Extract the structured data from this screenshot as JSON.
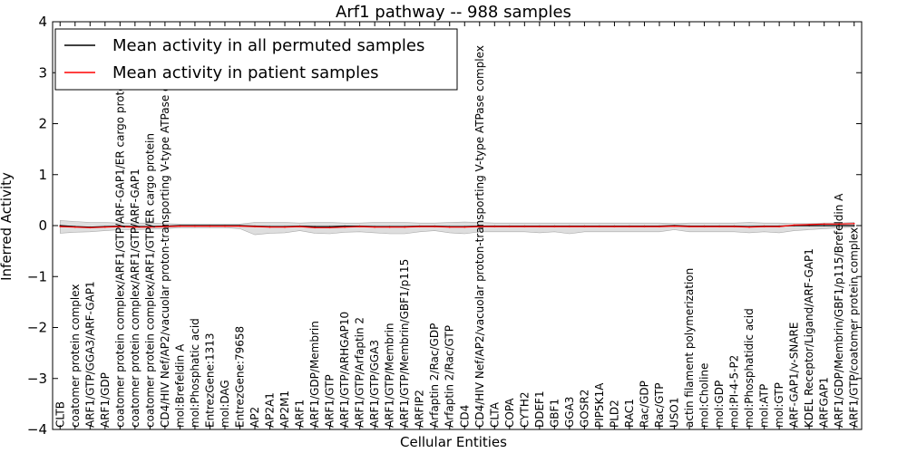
{
  "chart_data": {
    "type": "line",
    "title": "Arf1 pathway -- 988 samples",
    "xlabel": "Cellular Entities",
    "ylabel": "Inferred Activity",
    "ylim": [
      -4,
      4
    ],
    "yticks": [
      -4,
      -3,
      -2,
      -1,
      0,
      1,
      2,
      3,
      4
    ],
    "legend_position": "top-left",
    "categories": [
      "CLTB",
      "coatomer protein complex",
      "ARF1/GTP/GGA3/ARF-GAP1",
      "ARF1/GDP",
      "coatomer protein complex/ARF1/GTP/ARF-GAP1/ER cargo protein",
      "coatomer protein complex/ARF1/GTP/ARF-GAP1",
      "coatomer protein complex/ARF1/GTP/ER cargo protein",
      "CD4/HIV Nef/AP2/vacuolar proton-transporting V-type ATPase complex",
      "mol:Brefeldin A",
      "mol:Phosphatic acid",
      "EntrezGene:1313",
      "mol:DAG",
      "EntrezGene:79658",
      "AP2",
      "AP2A1",
      "AP2M1",
      "ARF1",
      "ARF1/GDP/Membrin",
      "ARF1/GTP",
      "ARF1/GTP/ARHGAP10",
      "ARF1/GTP/Arfaptin 2",
      "ARF1/GTP/GGA3",
      "ARF1/GTP/Membrin",
      "ARF1/GTP/Membrin/GBF1/p115",
      "ARFIP2",
      "Arfaptin 2/Rac/GDP",
      "Arfaptin 2/Rac/GTP",
      "CD4",
      "CD4/HIV Nef/AP2/vacuolar proton-transporting V-type ATPase complex",
      "CLTA",
      "COPA",
      "CYTH2",
      "DDEF1",
      "GBF1",
      "GGA3",
      "GOSR2",
      "PIP5K1A",
      "PLD2",
      "RAC1",
      "Rac/GDP",
      "Rac/GTP",
      "USO1",
      "actin filament polymerization",
      "mol:Choline",
      "mol:GDP",
      "mol:PI-4-5-P2",
      "mol:Phosphatidic acid",
      "mol:ATP",
      "mol:GTP",
      "ARF-GAP1/v-SNARE",
      "KDEL Receptor/Ligand/ARF-GAP1",
      "ARFGAP1",
      "ARF1/GDP/Membrin/GBF1/p115/Brefeldin A",
      "ARF1/GTP/coatomer protein complex"
    ],
    "series": [
      {
        "name": "Mean activity in all permuted samples",
        "color": "#000000",
        "values": [
          0.0,
          -0.02,
          -0.03,
          -0.02,
          -0.01,
          -0.02,
          -0.02,
          -0.01,
          0.0,
          0.0,
          0.0,
          0.0,
          0.0,
          -0.01,
          -0.02,
          -0.02,
          -0.01,
          -0.02,
          -0.02,
          -0.01,
          -0.01,
          -0.02,
          -0.02,
          -0.02,
          -0.01,
          -0.01,
          -0.02,
          -0.02,
          -0.01,
          -0.01,
          -0.01,
          -0.01,
          -0.01,
          -0.01,
          -0.01,
          -0.01,
          -0.01,
          -0.01,
          -0.01,
          -0.01,
          -0.01,
          0.0,
          -0.01,
          -0.01,
          -0.01,
          -0.01,
          -0.02,
          -0.01,
          -0.01,
          0.0,
          0.0,
          0.0,
          0.0,
          0.0
        ]
      },
      {
        "name": "Mean activity in patient samples",
        "color": "#ff0000",
        "values": [
          -0.02,
          -0.03,
          -0.04,
          -0.03,
          -0.02,
          -0.03,
          -0.03,
          -0.02,
          -0.01,
          -0.01,
          -0.01,
          -0.01,
          -0.01,
          -0.02,
          -0.03,
          -0.03,
          -0.02,
          -0.04,
          -0.04,
          -0.03,
          -0.02,
          -0.03,
          -0.03,
          -0.03,
          -0.02,
          -0.02,
          -0.03,
          -0.03,
          -0.02,
          -0.02,
          -0.02,
          -0.02,
          -0.02,
          -0.02,
          -0.02,
          -0.02,
          -0.02,
          -0.02,
          -0.02,
          -0.02,
          -0.02,
          -0.01,
          -0.02,
          -0.02,
          -0.02,
          -0.02,
          -0.03,
          -0.02,
          -0.02,
          0.01,
          0.02,
          0.03,
          0.03,
          0.04
        ]
      }
    ],
    "band": {
      "color": "#c8c8c8",
      "upper": [
        0.1,
        0.08,
        0.06,
        0.06,
        0.05,
        0.05,
        0.05,
        0.04,
        0.03,
        0.03,
        0.03,
        0.03,
        0.03,
        0.06,
        0.06,
        0.06,
        0.05,
        0.06,
        0.06,
        0.05,
        0.05,
        0.06,
        0.06,
        0.06,
        0.05,
        0.05,
        0.06,
        0.07,
        0.06,
        0.05,
        0.05,
        0.05,
        0.05,
        0.05,
        0.05,
        0.05,
        0.05,
        0.05,
        0.05,
        0.05,
        0.05,
        0.04,
        0.05,
        0.05,
        0.05,
        0.05,
        0.06,
        0.05,
        0.05,
        0.04,
        0.04,
        0.05,
        0.05,
        0.06
      ],
      "lower": [
        -0.15,
        -0.13,
        -0.12,
        -0.1,
        -0.08,
        -0.08,
        -0.07,
        -0.06,
        -0.04,
        -0.04,
        -0.04,
        -0.04,
        -0.06,
        -0.18,
        -0.15,
        -0.14,
        -0.1,
        -0.15,
        -0.16,
        -0.13,
        -0.12,
        -0.14,
        -0.16,
        -0.16,
        -0.12,
        -0.1,
        -0.14,
        -0.16,
        -0.12,
        -0.12,
        -0.12,
        -0.12,
        -0.14,
        -0.12,
        -0.16,
        -0.12,
        -0.12,
        -0.12,
        -0.12,
        -0.12,
        -0.12,
        -0.08,
        -0.12,
        -0.12,
        -0.12,
        -0.12,
        -0.14,
        -0.12,
        -0.14,
        -0.1,
        -0.08,
        -0.06,
        -0.04,
        -0.03
      ]
    }
  }
}
